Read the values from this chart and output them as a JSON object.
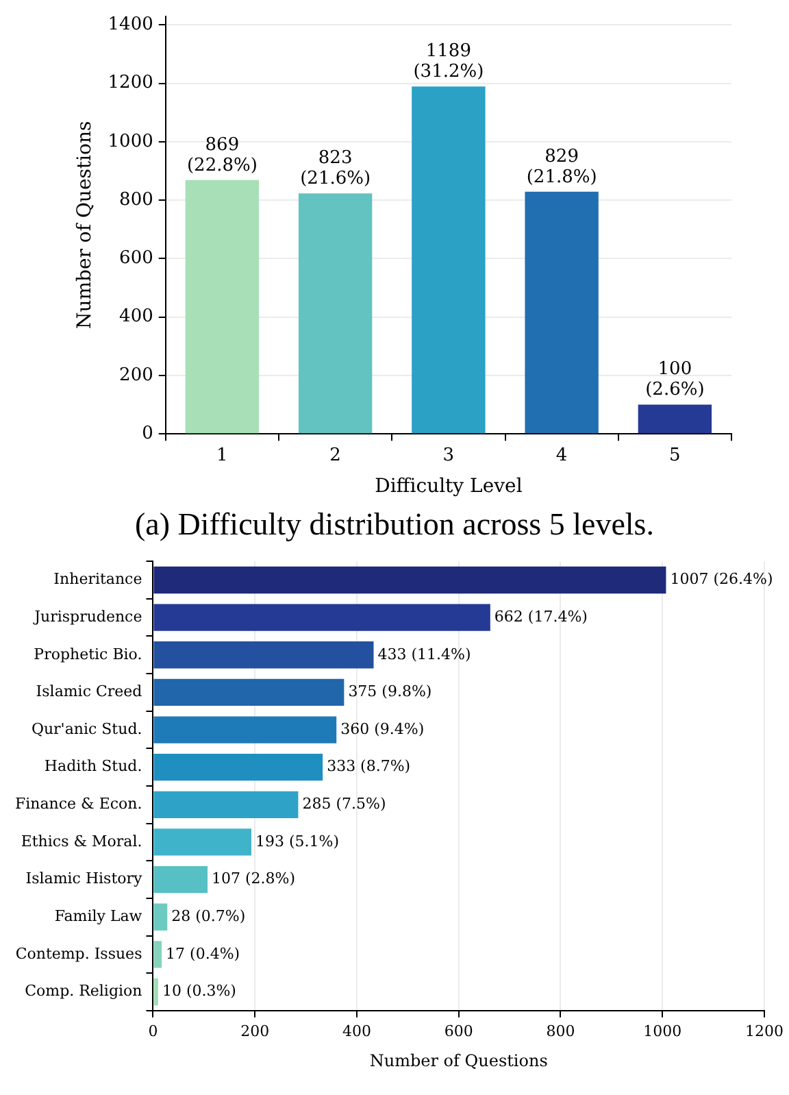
{
  "chart_data": [
    {
      "type": "bar",
      "xlabel": "Difficulty Level",
      "ylabel": "Number of Questions",
      "categories": [
        "1",
        "2",
        "3",
        "4",
        "5"
      ],
      "values": [
        869,
        823,
        1189,
        829,
        100
      ],
      "colors": [
        "#a8dfb7",
        "#62c3c0",
        "#2ba1c6",
        "#216fb1",
        "#253a95"
      ],
      "value_labels": [
        "869 (22.8%)",
        "823 (21.6%)",
        "1189 (31.2%)",
        "829 (21.8%)",
        "100 (2.6%)"
      ],
      "ylim": [
        0,
        1430
      ],
      "yticks": [
        0,
        200,
        400,
        600,
        800,
        1000,
        1200,
        1400
      ],
      "grid": "y",
      "annotations": [
        "(a) Difficulty distribution across 5 levels."
      ]
    },
    {
      "type": "bar",
      "orientation": "horizontal",
      "xlabel": "Number of Questions",
      "categories": [
        "Inheritance",
        "Jurisprudence",
        "Prophetic Bio.",
        "Islamic Creed",
        "Qur'anic Stud.",
        "Hadith Stud.",
        "Finance & Econ.",
        "Ethics & Moral.",
        "Islamic History",
        "Family Law",
        "Contemp. Issues",
        "Comp. Religion"
      ],
      "values": [
        1007,
        662,
        433,
        375,
        360,
        333,
        285,
        193,
        107,
        28,
        17,
        10
      ],
      "colors": [
        "#1f2a7a",
        "#253a95",
        "#24519f",
        "#2166ab",
        "#1f7ab8",
        "#1f8fc0",
        "#2ea3c7",
        "#3fb3c9",
        "#56c0c4",
        "#6ccac0",
        "#86d3bb",
        "#a3ddb8"
      ],
      "value_labels": [
        "1007 (26.4%)",
        "662 (17.4%)",
        "433 (11.4%)",
        "375 (9.8%)",
        "360 (9.4%)",
        "333 (8.7%)",
        "285 (7.5%)",
        "193 (5.1%)",
        "107 (2.8%)",
        "28 (0.7%)",
        "17 (0.4%)",
        "10 (0.3%)"
      ],
      "xlim": [
        0,
        1200
      ],
      "xticks": [
        0,
        200,
        400,
        600,
        800,
        1000,
        1200
      ],
      "grid": "x"
    }
  ]
}
